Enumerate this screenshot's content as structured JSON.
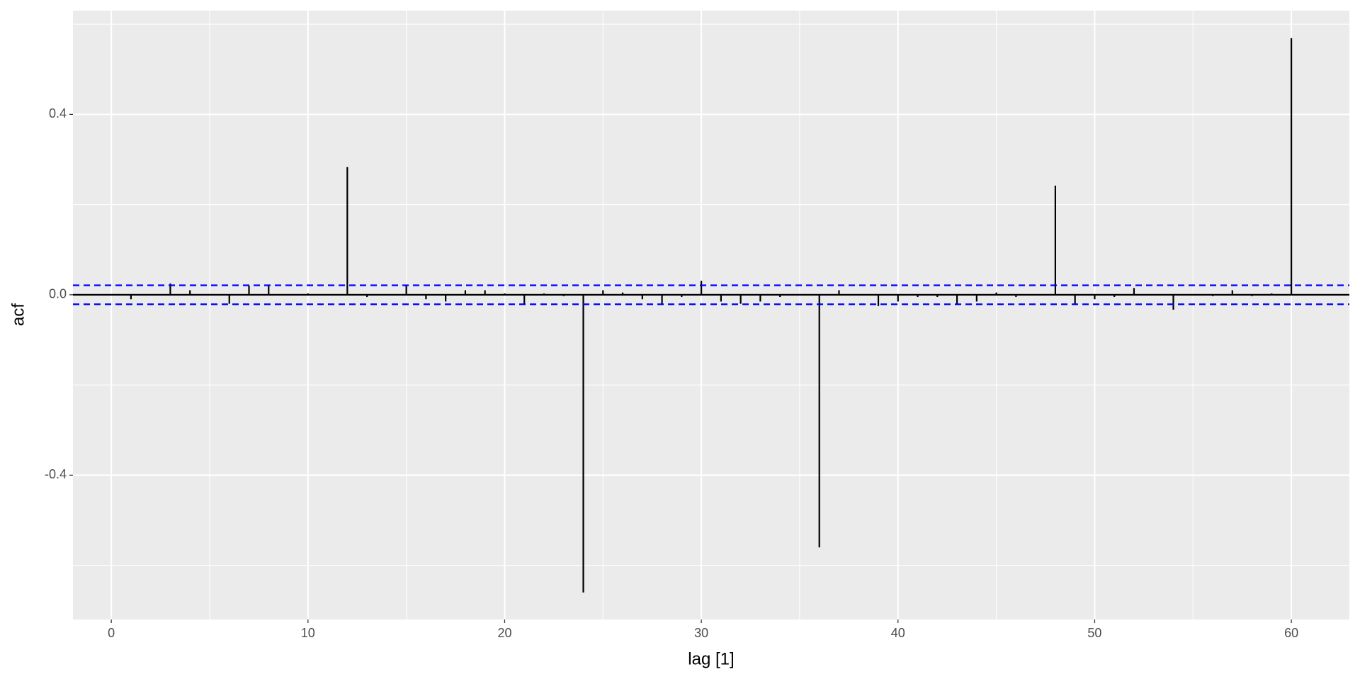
{
  "chart_data": {
    "type": "acf",
    "x_label": "lag [1]",
    "y_label": "acf",
    "x": [
      1,
      2,
      3,
      4,
      5,
      6,
      7,
      8,
      9,
      10,
      11,
      12,
      13,
      14,
      15,
      16,
      17,
      18,
      19,
      20,
      21,
      22,
      23,
      24,
      25,
      26,
      27,
      28,
      29,
      30,
      31,
      32,
      33,
      34,
      35,
      36,
      37,
      38,
      39,
      40,
      41,
      42,
      43,
      44,
      45,
      46,
      47,
      48,
      49,
      50,
      51,
      52,
      53,
      54,
      55,
      56,
      57,
      58,
      59,
      60
    ],
    "values": [
      -0.01,
      0,
      0.025,
      0.01,
      0,
      -0.02,
      0.02,
      0.02,
      0,
      0.003,
      0,
      0.283,
      -0.005,
      0,
      0.02,
      -0.01,
      -0.015,
      0.01,
      0.01,
      0.003,
      -0.02,
      0.003,
      -0.003,
      -0.66,
      0.01,
      0.005,
      -0.01,
      -0.02,
      -0.005,
      0.031,
      -0.015,
      -0.02,
      -0.015,
      -0.005,
      0,
      -0.56,
      0.01,
      0,
      -0.025,
      -0.015,
      -0.005,
      -0.005,
      -0.02,
      -0.015,
      0.005,
      -0.005,
      0,
      0.242,
      -0.02,
      -0.01,
      -0.005,
      0.015,
      0,
      -0.033,
      0,
      -0.003,
      0.01,
      -0.003,
      0.003,
      0.569
    ],
    "color": "#000000",
    "confidence_bound": 0.021,
    "confidence_color": "#0000ff",
    "xlim": [
      -1.95,
      62.95
    ],
    "xticks": [
      0,
      10,
      20,
      30,
      40,
      50,
      60
    ],
    "ylim": [
      -0.72,
      0.63
    ],
    "yticks": [
      -0.4,
      {
        "value": 0,
        "label": "0.0"
      },
      0.4
    ],
    "grid": true
  }
}
